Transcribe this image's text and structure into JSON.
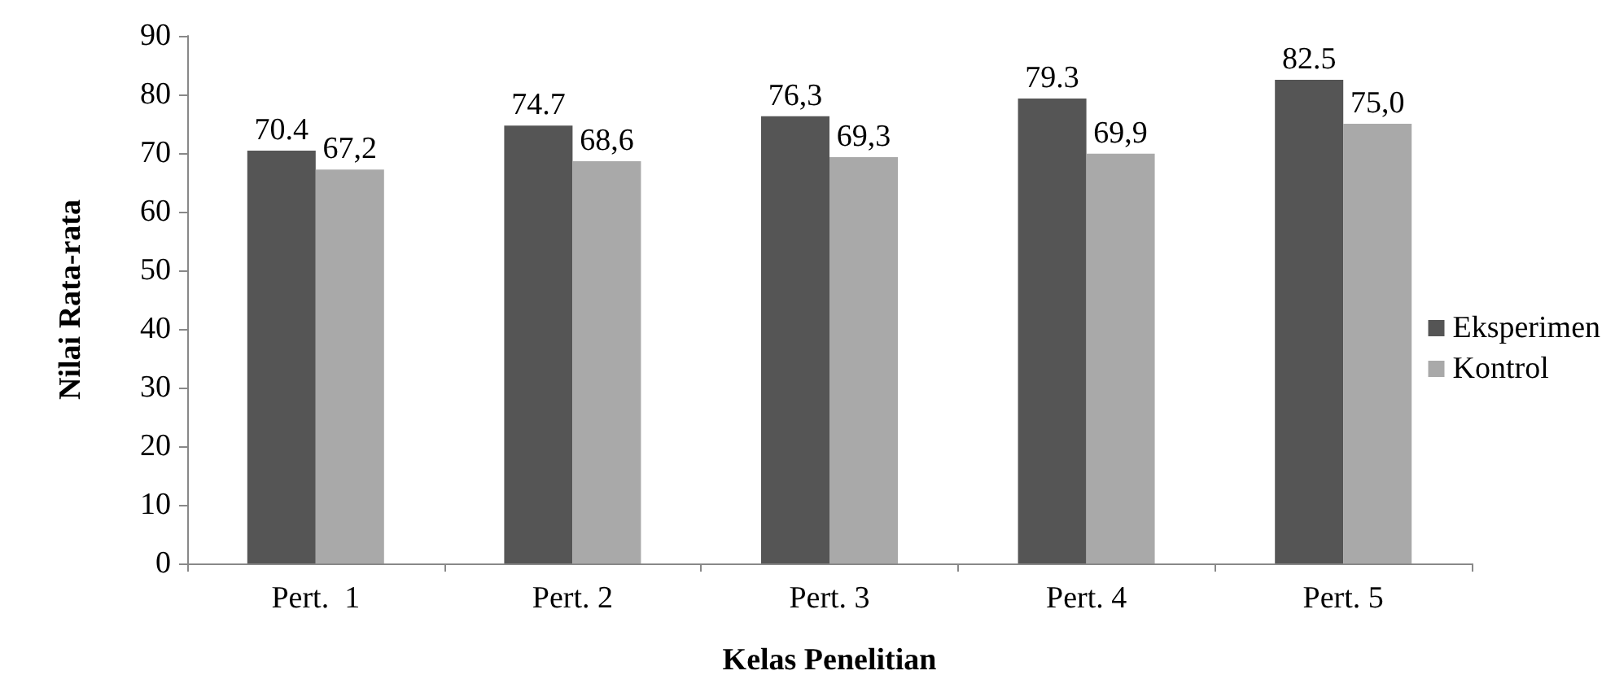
{
  "chart_data": {
    "type": "bar",
    "xlabel": "Kelas Penelitian",
    "ylabel": "Nilai Rata-rata",
    "categories": [
      "Pert.  1",
      "Pert. 2",
      "Pert. 3",
      "Pert. 4",
      "Pert. 5"
    ],
    "series": [
      {
        "name": "Eksperimen",
        "color": "#555555",
        "values": [
          70.4,
          74.7,
          76.3,
          79.3,
          82.5
        ],
        "value_labels": [
          "70.4",
          "74.7",
          "76,3",
          "79.3",
          "82.5"
        ]
      },
      {
        "name": "Kontrol",
        "color": "#a9a9a9",
        "values": [
          67.2,
          68.6,
          69.3,
          69.9,
          75.0
        ],
        "value_labels": [
          "67,2",
          "68,6",
          "69,3",
          "69,9",
          "75,0"
        ]
      }
    ],
    "ylim": [
      0,
      90
    ],
    "yticks": [
      0,
      10,
      20,
      30,
      40,
      50,
      60,
      70,
      80,
      90
    ],
    "grid": false,
    "legend": "right"
  }
}
